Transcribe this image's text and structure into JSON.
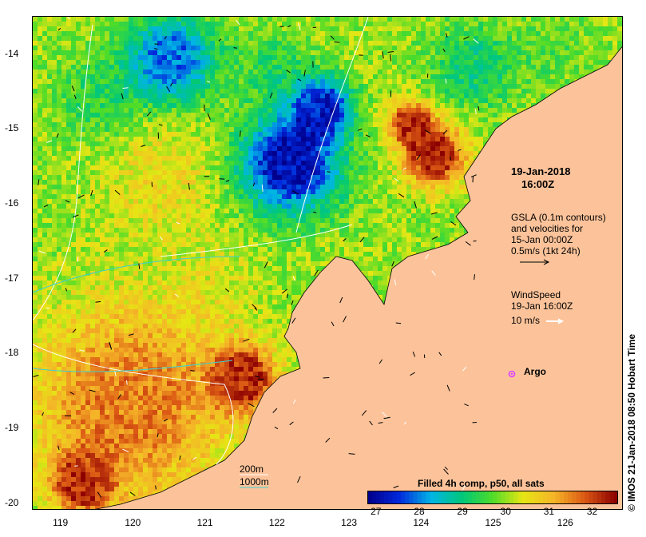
{
  "chart_data": {
    "type": "heatmap",
    "x_ticks": [
      "119",
      "120",
      "121",
      "122",
      "123",
      "124",
      "125",
      "126"
    ],
    "y_ticks": [
      "-14",
      "-15",
      "-16",
      "-17",
      "-18",
      "-19",
      "-20"
    ],
    "xlim": [
      118.6,
      126.8
    ],
    "ylim": [
      -20.1,
      -13.5
    ],
    "colorbar": {
      "title": "Filled 4h comp, p50, all sats",
      "ticks": [
        "27",
        "28",
        "29",
        "30",
        "31",
        "32"
      ],
      "range": [
        26.8,
        32.6
      ]
    }
  },
  "annotations": {
    "date": "19-Jan-2018",
    "time": "16:00Z",
    "gsla_line1": "GSLA (0.1m contours)",
    "gsla_line2": "and velocities for",
    "gsla_line3": "15-Jan 00:00Z",
    "gsla_line4": "0.5m/s (1kt 24h)",
    "wind_line1": "WindSpeed",
    "wind_line2": "19-Jan 16:00Z",
    "wind_scale": "10 m/s",
    "argo_label": "Argo",
    "depth_200": "200m",
    "depth_1000": "1000m",
    "credit": "© IMOS 21-Jan-2018 08:50 Hobart Time"
  },
  "colors": {
    "land": "#fcc39a",
    "argo": "#e040ff",
    "contour_200": "#ffffff",
    "contour_1000": "#3fd0d0"
  }
}
